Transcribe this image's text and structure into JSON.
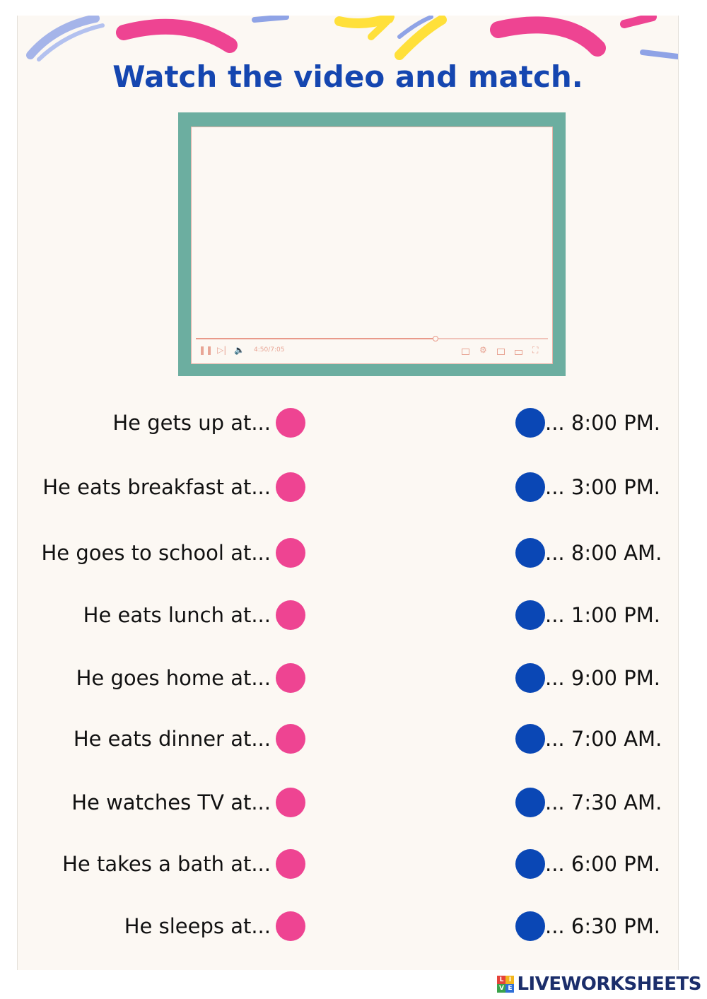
{
  "title": "Watch the video and match.",
  "video": {
    "time_readout": "4:50/7:05",
    "progress": 0.68
  },
  "rows": [
    {
      "phrase": "He gets up at...",
      "time": "... 8:00 PM."
    },
    {
      "phrase": "He eats breakfast at...",
      "time": "... 3:00 PM."
    },
    {
      "phrase": "He goes to school at...",
      "time": "... 8:00 AM."
    },
    {
      "phrase": "He eats lunch at...",
      "time": "... 1:00 PM."
    },
    {
      "phrase": "He goes home at...",
      "time": "... 9:00 PM."
    },
    {
      "phrase": "He eats dinner at...",
      "time": "... 7:00 AM."
    },
    {
      "phrase": "He watches TV at...",
      "time": "... 7:30 AM."
    },
    {
      "phrase": "He takes a bath at...",
      "time": "... 6:00 PM."
    },
    {
      "phrase": "He sleeps at...",
      "time": "... 6:30 PM."
    }
  ],
  "colors": {
    "title": "#1546b0",
    "left_dot": "#ee4492",
    "right_dot": "#0a47b5",
    "video_border": "#6caea0",
    "background": "#fcf8f3"
  },
  "footer": {
    "brand": "LIVEWORKSHEETS",
    "logo_letters": [
      "L",
      "I",
      "V",
      "E"
    ]
  }
}
